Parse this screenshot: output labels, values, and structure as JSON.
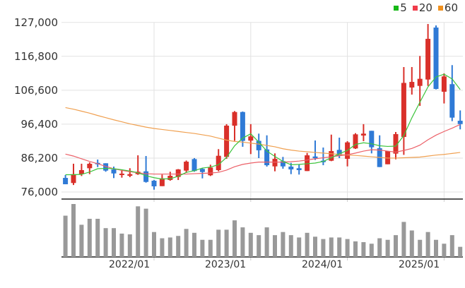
{
  "legend": [
    {
      "label": "5",
      "color": "#16b816"
    },
    {
      "label": "20",
      "color": "#f03c4b"
    },
    {
      "label": "60",
      "color": "#f0901e"
    }
  ],
  "chart_data": {
    "type": "candlestick",
    "title": "",
    "ylim": [
      76000,
      127000
    ],
    "yticks": [
      127000,
      116800,
      106600,
      96400,
      86200,
      76000
    ],
    "ytick_labels": [
      "127,000",
      "116,800",
      "106,600",
      "96,400",
      "86,200",
      "76,000"
    ],
    "xticks": [
      {
        "label": "2022/01",
        "index": 11
      },
      {
        "label": "2023/01",
        "index": 23
      },
      {
        "label": "2024/01",
        "index": 35
      },
      {
        "label": "2025/01",
        "index": 47
      }
    ],
    "up_color": "#d9302a",
    "down_color": "#2f7ad6",
    "volume_color": "#999999",
    "months": [
      "2021/02",
      "2021/03",
      "2021/04",
      "2021/05",
      "2021/06",
      "2021/07",
      "2021/08",
      "2021/09",
      "2021/10",
      "2021/11",
      "2021/12",
      "2022/01",
      "2022/02",
      "2022/03",
      "2022/04",
      "2022/05",
      "2022/06",
      "2022/07",
      "2022/08",
      "2022/09",
      "2022/10",
      "2022/11",
      "2022/12",
      "2023/01",
      "2023/02",
      "2023/03",
      "2023/04",
      "2023/05",
      "2023/06",
      "2023/07",
      "2023/08",
      "2023/09",
      "2023/10",
      "2023/11",
      "2023/12",
      "2024/01",
      "2024/02",
      "2024/03",
      "2024/04",
      "2024/05",
      "2024/06",
      "2024/07",
      "2024/08",
      "2024/09",
      "2024/10",
      "2024/11",
      "2024/12",
      "2025/01",
      "2025/02",
      "2025/03"
    ],
    "ohlc": [
      [
        80240,
        81100,
        78330,
        78330
      ],
      [
        78700,
        84500,
        78100,
        81370
      ],
      [
        81370,
        84500,
        80800,
        82580
      ],
      [
        83150,
        84900,
        81370,
        84490
      ],
      [
        84760,
        85760,
        83490,
        84490
      ],
      [
        84640,
        84640,
        82090,
        82430
      ],
      [
        82790,
        83640,
        80180,
        81580
      ],
      [
        81240,
        82430,
        80310,
        81520
      ],
      [
        80870,
        83150,
        80460,
        81370
      ],
      [
        81370,
        87030,
        81160,
        82090
      ],
      [
        82220,
        86820,
        78820,
        79030
      ],
      [
        79400,
        79600,
        76700,
        77700
      ],
      [
        77760,
        81240,
        77760,
        80100
      ],
      [
        79610,
        82090,
        79400,
        80880
      ],
      [
        80520,
        82900,
        79600,
        82790
      ],
      [
        82430,
        85460,
        81730,
        85120
      ],
      [
        85900,
        86200,
        82100,
        82300
      ],
      [
        82930,
        83150,
        80100,
        82000
      ],
      [
        81030,
        84210,
        80800,
        83360
      ],
      [
        82580,
        88890,
        82220,
        86890
      ],
      [
        86550,
        96400,
        85970,
        95950
      ],
      [
        95940,
        100330,
        91380,
        100050
      ],
      [
        100050,
        100200,
        89600,
        91380
      ],
      [
        91450,
        96400,
        87400,
        92720
      ],
      [
        91380,
        93550,
        86190,
        88540
      ],
      [
        88800,
        93040,
        83640,
        84060
      ],
      [
        83700,
        87610,
        82220,
        85970
      ],
      [
        85270,
        86550,
        83000,
        83700
      ],
      [
        83640,
        84760,
        81370,
        82790
      ],
      [
        83150,
        84340,
        81240,
        82580
      ],
      [
        82300,
        87740,
        82300,
        87030
      ],
      [
        86680,
        91490,
        85610,
        86190
      ],
      [
        85400,
        89370,
        84060,
        85120
      ],
      [
        85400,
        93250,
        85270,
        88310
      ],
      [
        88670,
        92340,
        86190,
        86820
      ],
      [
        85970,
        91280,
        83700,
        90920
      ],
      [
        89100,
        93690,
        88940,
        93340
      ],
      [
        92980,
        96400,
        91280,
        93550
      ],
      [
        94400,
        94400,
        87610,
        89450
      ],
      [
        89160,
        93040,
        83500,
        83500
      ],
      [
        84340,
        88310,
        84340,
        88310
      ],
      [
        87540,
        94040,
        85830,
        93400
      ],
      [
        92560,
        113570,
        87180,
        108800
      ],
      [
        107410,
        113570,
        105290,
        109100
      ],
      [
        107900,
        116900,
        101900,
        110030
      ],
      [
        109820,
        126510,
        107900,
        122050
      ],
      [
        125450,
        126090,
        106850,
        106990
      ],
      [
        106150,
        111670,
        102620,
        110750
      ],
      [
        108420,
        114140,
        97290,
        98360
      ],
      [
        97430,
        100530,
        94830,
        96430
      ]
    ],
    "volume": [
      159,
      204,
      124,
      147,
      147,
      111,
      111,
      90,
      87,
      195,
      186,
      96,
      72,
      75,
      81,
      108,
      93,
      66,
      66,
      105,
      105,
      141,
      114,
      93,
      84,
      114,
      84,
      96,
      84,
      75,
      93,
      78,
      69,
      75,
      75,
      69,
      60,
      57,
      51,
      72,
      66,
      84,
      135,
      102,
      66,
      96,
      66,
      51,
      84,
      39
    ],
    "ma5": [
      81200,
      81200,
      81300,
      82000,
      83000,
      83100,
      83000,
      82700,
      82300,
      81800,
      80900,
      80300,
      79900,
      80000,
      80700,
      81900,
      82400,
      83200,
      83500,
      84200,
      86400,
      89900,
      92200,
      93500,
      91000,
      88300,
      86700,
      85200,
      84200,
      84300,
      84500,
      84700,
      85200,
      86300,
      87500,
      88500,
      90300,
      90800,
      90500,
      89900,
      89700,
      89800,
      93000,
      98300,
      103000,
      107600,
      110600,
      111400,
      110000,
      106800
    ],
    "ma20": [
      87400,
      86800,
      86000,
      85200,
      84500,
      83700,
      83000,
      82500,
      82100,
      81800,
      81500,
      81400,
      81400,
      81400,
      81400,
      81400,
      81500,
      81600,
      81700,
      81900,
      82600,
      83600,
      84300,
      84700,
      85000,
      85000,
      85000,
      85000,
      85100,
      85300,
      85600,
      86000,
      86300,
      86600,
      86900,
      87200,
      87700,
      88300,
      88700,
      88600,
      88300,
      88000,
      88500,
      89100,
      90100,
      91700,
      93100,
      94200,
      95200,
      96300
    ],
    "ma60": [
      101370,
      100900,
      100300,
      99700,
      99000,
      98350,
      97700,
      97100,
      96500,
      96000,
      95500,
      95100,
      94800,
      94500,
      94200,
      93900,
      93600,
      93200,
      92800,
      92200,
      91600,
      91200,
      91000,
      90700,
      90400,
      90000,
      89600,
      89000,
      88600,
      88300,
      88100,
      87900,
      87700,
      87500,
      87300,
      87100,
      87000,
      86800,
      86600,
      86400,
      86200,
      86200,
      86300,
      86400,
      86500,
      86800,
      87100,
      87300,
      87600,
      87900
    ]
  }
}
